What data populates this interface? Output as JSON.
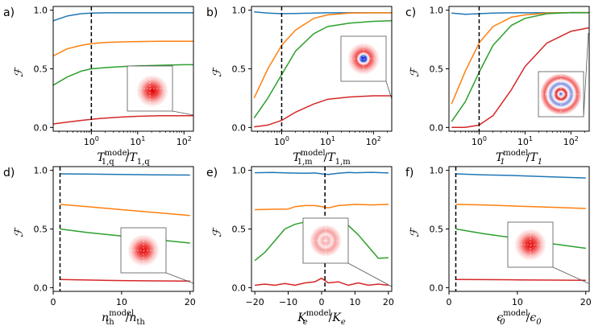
{
  "colors": {
    "series": [
      "#1f77b4",
      "#ff7f0e",
      "#2ca02c",
      "#d62728"
    ],
    "vline": "#000000",
    "inset_border": "#555555"
  },
  "chart_data": [
    {
      "type": "line",
      "panel_label": "a)",
      "xscale": "log",
      "xlim": [
        0.15,
        160
      ],
      "ylim": [
        0,
        1
      ],
      "xticks": [
        1,
        10,
        100
      ],
      "xtick_labels": [
        "10^0",
        "10^1",
        "10^2"
      ],
      "yticks": [
        0,
        0.5,
        1
      ],
      "ytick_labels": [
        "0.0",
        "0.5",
        "1.0"
      ],
      "xlabel": {
        "main": "T",
        "sup": "model",
        "sub": "1,q",
        "den_main": "T",
        "den_sub": "1,q"
      },
      "ylabel": "ℱ",
      "vline": 1,
      "inset": "wigner-red-offset",
      "series": [
        {
          "x": [
            0.15,
            0.3,
            0.6,
            1,
            2,
            5,
            10,
            30,
            100,
            160
          ],
          "y": [
            0.91,
            0.95,
            0.97,
            0.975,
            0.978,
            0.978,
            0.978,
            0.978,
            0.978,
            0.978
          ]
        },
        {
          "x": [
            0.15,
            0.3,
            0.6,
            1,
            2,
            5,
            10,
            30,
            100,
            160
          ],
          "y": [
            0.61,
            0.67,
            0.7,
            0.715,
            0.725,
            0.73,
            0.733,
            0.735,
            0.735,
            0.735
          ]
        },
        {
          "x": [
            0.15,
            0.3,
            0.6,
            1,
            2,
            5,
            10,
            30,
            100,
            160
          ],
          "y": [
            0.36,
            0.43,
            0.48,
            0.5,
            0.51,
            0.52,
            0.525,
            0.53,
            0.535,
            0.535
          ]
        },
        {
          "x": [
            0.15,
            0.3,
            0.6,
            1,
            2,
            5,
            10,
            30,
            100,
            160
          ],
          "y": [
            0.03,
            0.045,
            0.06,
            0.07,
            0.08,
            0.09,
            0.095,
            0.1,
            0.1,
            0.1
          ]
        }
      ]
    },
    {
      "type": "line",
      "panel_label": "b)",
      "xscale": "log",
      "xlim": [
        0.22,
        250
      ],
      "ylim": [
        0,
        1
      ],
      "xticks": [
        1,
        10,
        100
      ],
      "xtick_labels": [
        "10^0",
        "10^1",
        "10^2"
      ],
      "yticks": [
        0,
        0.5,
        1
      ],
      "ytick_labels": [
        "0.0",
        "0.5",
        "1.0"
      ],
      "xlabel": {
        "main": "T",
        "sup": "model",
        "sub": "1,m",
        "den_main": "T",
        "den_sub": "1,m"
      },
      "ylabel": "ℱ",
      "vline": 1,
      "inset": "wigner-blue-core",
      "series": [
        {
          "x": [
            0.25,
            0.5,
            1,
            2,
            5,
            10,
            30,
            100,
            250
          ],
          "y": [
            0.985,
            0.975,
            0.97,
            0.972,
            0.975,
            0.978,
            0.978,
            0.978,
            0.978
          ]
        },
        {
          "x": [
            0.25,
            0.5,
            1,
            2,
            5,
            10,
            30,
            100,
            250
          ],
          "y": [
            0.25,
            0.5,
            0.7,
            0.83,
            0.93,
            0.96,
            0.975,
            0.978,
            0.978
          ]
        },
        {
          "x": [
            0.25,
            0.5,
            1,
            2,
            5,
            10,
            30,
            100,
            250
          ],
          "y": [
            0.08,
            0.25,
            0.45,
            0.65,
            0.8,
            0.86,
            0.89,
            0.905,
            0.91
          ]
        },
        {
          "x": [
            0.25,
            0.5,
            1,
            2,
            5,
            10,
            30,
            100,
            250
          ],
          "y": [
            0.005,
            0.02,
            0.06,
            0.13,
            0.2,
            0.24,
            0.26,
            0.27,
            0.27
          ]
        }
      ]
    },
    {
      "type": "line",
      "panel_label": "c)",
      "xscale": "log",
      "xlim": [
        0.22,
        250
      ],
      "ylim": [
        0,
        1
      ],
      "xticks": [
        1,
        10,
        100
      ],
      "xtick_labels": [
        "10^0",
        "10^1",
        "10^2"
      ],
      "yticks": [
        0,
        0.5,
        1
      ],
      "ytick_labels": [
        "0.0",
        "0.5",
        "1.0"
      ],
      "xlabel": {
        "main": "T",
        "sup": "model",
        "sub": "1",
        "den_main": "T",
        "den_sub": "1"
      },
      "ylabel": "ℱ",
      "vline": 1,
      "inset": "wigner-rings",
      "series": [
        {
          "x": [
            0.25,
            0.5,
            1,
            2,
            5,
            10,
            30,
            100,
            250
          ],
          "y": [
            0.975,
            0.965,
            0.97,
            0.975,
            0.978,
            0.978,
            0.978,
            0.978,
            0.978
          ]
        },
        {
          "x": [
            0.25,
            0.5,
            1,
            2,
            5,
            10,
            30,
            100,
            250
          ],
          "y": [
            0.2,
            0.48,
            0.72,
            0.86,
            0.94,
            0.96,
            0.975,
            0.98,
            0.98
          ]
        },
        {
          "x": [
            0.25,
            0.5,
            1,
            2,
            5,
            10,
            30,
            100,
            250
          ],
          "y": [
            0.05,
            0.22,
            0.47,
            0.7,
            0.87,
            0.93,
            0.97,
            0.98,
            0.98
          ]
        },
        {
          "x": [
            0.25,
            0.5,
            1,
            2,
            5,
            10,
            30,
            100,
            250
          ],
          "y": [
            0.0,
            0.0,
            0.02,
            0.1,
            0.32,
            0.52,
            0.72,
            0.82,
            0.85
          ]
        }
      ]
    },
    {
      "type": "line",
      "panel_label": "d)",
      "xscale": "linear",
      "xlim": [
        0,
        20.5
      ],
      "ylim": [
        0,
        1
      ],
      "xticks": [
        0,
        10,
        20
      ],
      "xtick_labels": [
        "0",
        "10",
        "20"
      ],
      "yticks": [
        0,
        0.5,
        1
      ],
      "ytick_labels": [
        "0.0",
        "0.5",
        "1.0"
      ],
      "xlabel": {
        "main": "n",
        "sup": "model",
        "sub": "th",
        "den_main": "n",
        "den_sub": "th"
      },
      "ylabel": "ℱ",
      "vline": 1,
      "inset": "wigner-red",
      "series": [
        {
          "x": [
            1,
            5,
            10,
            15,
            20
          ],
          "y": [
            0.97,
            0.968,
            0.965,
            0.962,
            0.96
          ]
        },
        {
          "x": [
            1,
            5,
            10,
            15,
            20
          ],
          "y": [
            0.71,
            0.69,
            0.665,
            0.64,
            0.615
          ]
        },
        {
          "x": [
            1,
            5,
            10,
            15,
            20
          ],
          "y": [
            0.5,
            0.47,
            0.44,
            0.41,
            0.38
          ]
        },
        {
          "x": [
            1,
            5,
            10,
            15,
            20
          ],
          "y": [
            0.07,
            0.065,
            0.06,
            0.057,
            0.055
          ]
        }
      ]
    },
    {
      "type": "line",
      "panel_label": "e)",
      "xscale": "linear",
      "xlim": [
        -21,
        21
      ],
      "ylim": [
        0,
        1
      ],
      "xticks": [
        -20,
        -10,
        0,
        10,
        20
      ],
      "xtick_labels": [
        "−20",
        "−10",
        "0",
        "10",
        "20"
      ],
      "yticks": [
        0,
        0.5,
        1
      ],
      "ytick_labels": [
        "0.0",
        "0.5",
        "1.0"
      ],
      "xlabel": {
        "main": "K",
        "sup": "model",
        "sub": "e",
        "den_main": "K",
        "den_sub": "e"
      },
      "ylabel": "ℱ",
      "vline": 1,
      "inset": "wigner-ring-pale",
      "series": [
        {
          "x": [
            -20,
            -15,
            -10,
            -5,
            -2,
            0,
            2,
            5,
            8,
            10,
            15,
            20
          ],
          "y": [
            0.98,
            0.982,
            0.978,
            0.975,
            0.978,
            0.97,
            0.965,
            0.975,
            0.982,
            0.98,
            0.983,
            0.978
          ]
        },
        {
          "x": [
            -20,
            -15,
            -10,
            -8,
            -5,
            -2,
            0,
            2,
            5,
            8,
            10,
            15,
            20
          ],
          "y": [
            0.665,
            0.668,
            0.67,
            0.69,
            0.7,
            0.7,
            0.69,
            0.68,
            0.7,
            0.705,
            0.71,
            0.705,
            0.71
          ]
        },
        {
          "x": [
            -20,
            -17,
            -14,
            -11,
            -8,
            -5,
            -2,
            0,
            2,
            5,
            8,
            11,
            14,
            17,
            20
          ],
          "y": [
            0.23,
            0.3,
            0.4,
            0.5,
            0.54,
            0.56,
            0.565,
            0.55,
            0.53,
            0.54,
            0.53,
            0.45,
            0.35,
            0.25,
            0.255
          ]
        },
        {
          "x": [
            -20,
            -17,
            -14,
            -11,
            -8,
            -5,
            -2,
            0,
            2,
            5,
            8,
            11,
            14,
            17,
            20
          ],
          "y": [
            0.02,
            0.03,
            0.02,
            0.035,
            0.02,
            0.04,
            0.05,
            0.08,
            0.04,
            0.05,
            0.02,
            0.04,
            0.02,
            0.03,
            0.02
          ]
        }
      ]
    },
    {
      "type": "line",
      "panel_label": "f)",
      "xscale": "linear",
      "xlim": [
        0,
        20.5
      ],
      "ylim": [
        0,
        1
      ],
      "xticks": [
        0,
        10,
        20
      ],
      "xtick_labels": [
        "0",
        "10",
        "20"
      ],
      "yticks": [
        0,
        0.5,
        1
      ],
      "ytick_labels": [
        "0.0",
        "0.5",
        "1.0"
      ],
      "xlabel": {
        "main": "ϵ",
        "sup": "model",
        "sub": "0",
        "den_main": "ϵ",
        "den_sub": "0"
      },
      "ylabel": "ℱ",
      "vline": 1,
      "inset": "wigner-red",
      "series": [
        {
          "x": [
            1,
            5,
            10,
            15,
            20
          ],
          "y": [
            0.97,
            0.962,
            0.955,
            0.945,
            0.935
          ]
        },
        {
          "x": [
            1,
            5,
            10,
            15,
            20
          ],
          "y": [
            0.71,
            0.705,
            0.695,
            0.685,
            0.675
          ]
        },
        {
          "x": [
            1,
            5,
            10,
            15,
            20
          ],
          "y": [
            0.5,
            0.46,
            0.42,
            0.375,
            0.335
          ]
        },
        {
          "x": [
            1,
            5,
            10,
            15,
            20
          ],
          "y": [
            0.07,
            0.068,
            0.066,
            0.064,
            0.062
          ]
        }
      ]
    }
  ]
}
